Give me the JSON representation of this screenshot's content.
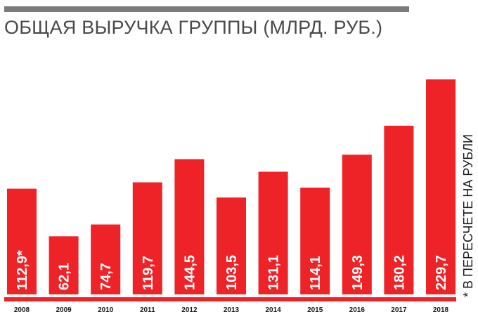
{
  "title": "ОБЩАЯ ВЫРУЧКА ГРУППЫ (МЛРД. РУБ.)",
  "footnote": "* В ПЕРЕСЧЕТЕ НА РУБЛИ",
  "colors": {
    "bar": "#ee2328",
    "rule": "#7a7a7a",
    "text": "#4a4a4a"
  },
  "chart_data": {
    "type": "bar",
    "categories": [
      "2008",
      "2009",
      "2010",
      "2011",
      "2012",
      "2013",
      "2014",
      "2015",
      "2016",
      "2017",
      "2018"
    ],
    "values": [
      112.9,
      62.1,
      74.7,
      119.7,
      144.5,
      103.5,
      131.1,
      114.1,
      149.3,
      180.2,
      229.7
    ],
    "value_labels": [
      "112,9*",
      "62,1",
      "74,7",
      "119,7",
      "144,5",
      "103,5",
      "131,1",
      "114,1",
      "149,3",
      "180,2",
      "229,7"
    ],
    "title": "ОБЩАЯ ВЫРУЧКА ГРУППЫ (МЛРД. РУБ.)",
    "xlabel": "",
    "ylabel": "",
    "ylim": [
      0,
      229.7
    ],
    "grid": false,
    "legend": "none"
  }
}
